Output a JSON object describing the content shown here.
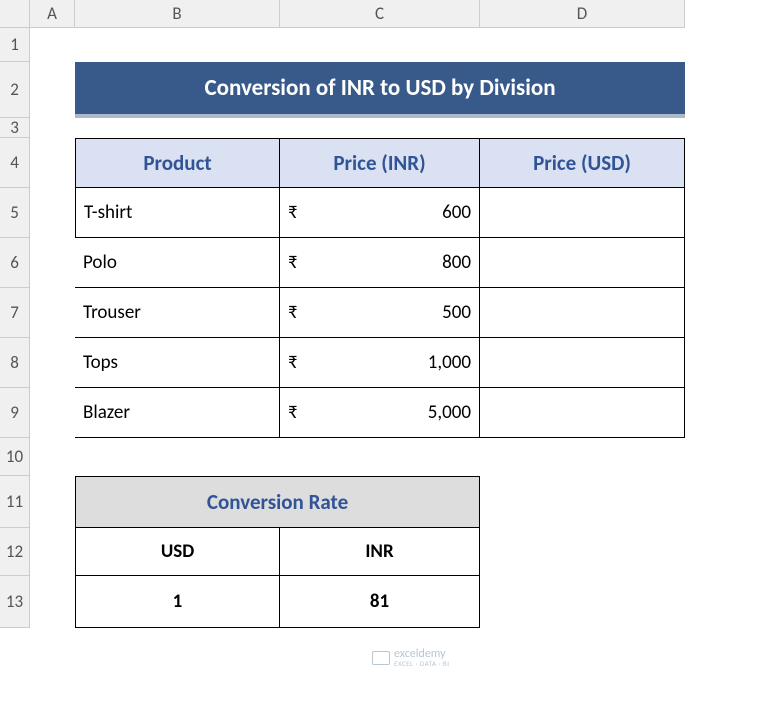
{
  "columns": [
    "A",
    "B",
    "C",
    "D"
  ],
  "rows": [
    "1",
    "2",
    "3",
    "4",
    "5",
    "6",
    "7",
    "8",
    "9",
    "10",
    "11",
    "12",
    "13"
  ],
  "title": "Conversion of INR to USD by Division",
  "title_bg": "#375a8a",
  "title_underline": "#acb9ca",
  "main_table": {
    "header_bg": "#d9e1f2",
    "header_fg": "#305496",
    "columns": [
      "Product",
      "Price (INR)",
      "Price (USD)"
    ],
    "currency_symbol": "₹",
    "rows": [
      {
        "product": "T-shirt",
        "inr": "600",
        "usd": ""
      },
      {
        "product": "Polo",
        "inr": "800",
        "usd": ""
      },
      {
        "product": "Trouser",
        "inr": "500",
        "usd": ""
      },
      {
        "product": "Tops",
        "inr": "1,000",
        "usd": ""
      },
      {
        "product": "Blazer",
        "inr": "5,000",
        "usd": ""
      }
    ]
  },
  "conversion": {
    "title": "Conversion Rate",
    "title_bg": "#dddddd",
    "title_fg": "#305496",
    "headers": [
      "USD",
      "INR"
    ],
    "values": [
      "1",
      "81"
    ]
  },
  "watermark": {
    "brand": "exceldemy",
    "tagline": "EXCEL · DATA · BI"
  }
}
